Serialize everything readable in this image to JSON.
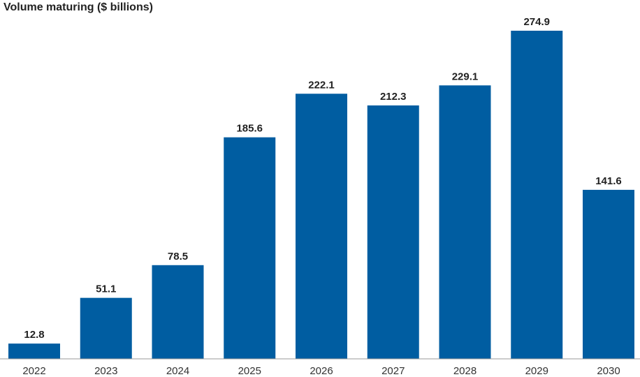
{
  "chart_data": {
    "type": "bar",
    "title": "Volume maturing ($ billions)",
    "xlabel": "",
    "ylabel": "",
    "categories": [
      "2022",
      "2023",
      "2024",
      "2025",
      "2026",
      "2027",
      "2028",
      "2029",
      "2030"
    ],
    "values": [
      12.8,
      51.1,
      78.5,
      185.6,
      222.1,
      212.3,
      229.1,
      274.9,
      141.6
    ],
    "data_labels": [
      "12.8",
      "51.1",
      "78.5",
      "185.6",
      "222.1",
      "212.3",
      "229.1",
      "274.9",
      "141.6"
    ],
    "ylim": [
      0,
      274.9
    ],
    "grid": false,
    "legend": "none",
    "colors": {
      "bar": "#005da1",
      "axis": "#999999",
      "text": "#222222"
    }
  }
}
